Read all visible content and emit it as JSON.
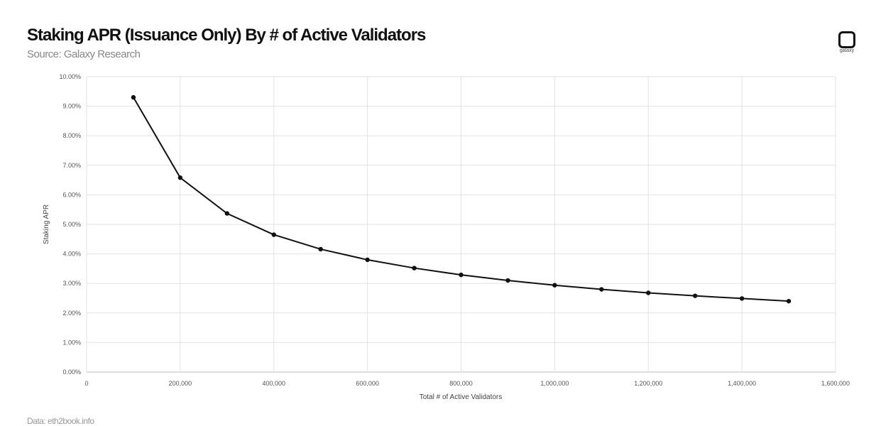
{
  "header": {
    "title": "Staking APR (Issuance Only) By # of Active Validators",
    "subtitle": "Source: Galaxy Research"
  },
  "logo": {
    "text": "galaxy"
  },
  "footer": {
    "text": "Data: eth2book.info"
  },
  "chart_data": {
    "type": "line",
    "title": "Staking APR (Issuance Only) By # of Active Validators",
    "xlabel": "Total # of Active Validators",
    "ylabel": "Staking APR",
    "xlim": [
      0,
      1600000
    ],
    "ylim": [
      0,
      10
    ],
    "x_ticks": [
      "0",
      "200,000",
      "400,000",
      "600,000",
      "800,000",
      "1,000,000",
      "1,200,000",
      "1,400,000",
      "1,600,000"
    ],
    "y_ticks": [
      "0.00%",
      "1.00%",
      "2.00%",
      "3.00%",
      "4.00%",
      "5.00%",
      "6.00%",
      "7.00%",
      "8.00%",
      "9.00%",
      "10.00%"
    ],
    "grid": true,
    "series": [
      {
        "name": "Staking APR",
        "x": [
          100000,
          200000,
          300000,
          400000,
          500000,
          600000,
          700000,
          800000,
          900000,
          1000000,
          1100000,
          1200000,
          1300000,
          1400000,
          1500000
        ],
        "values": [
          9.3,
          6.58,
          5.37,
          4.65,
          4.16,
          3.8,
          3.52,
          3.29,
          3.1,
          2.94,
          2.8,
          2.68,
          2.58,
          2.49,
          2.4
        ],
        "color": "#111111"
      }
    ]
  }
}
